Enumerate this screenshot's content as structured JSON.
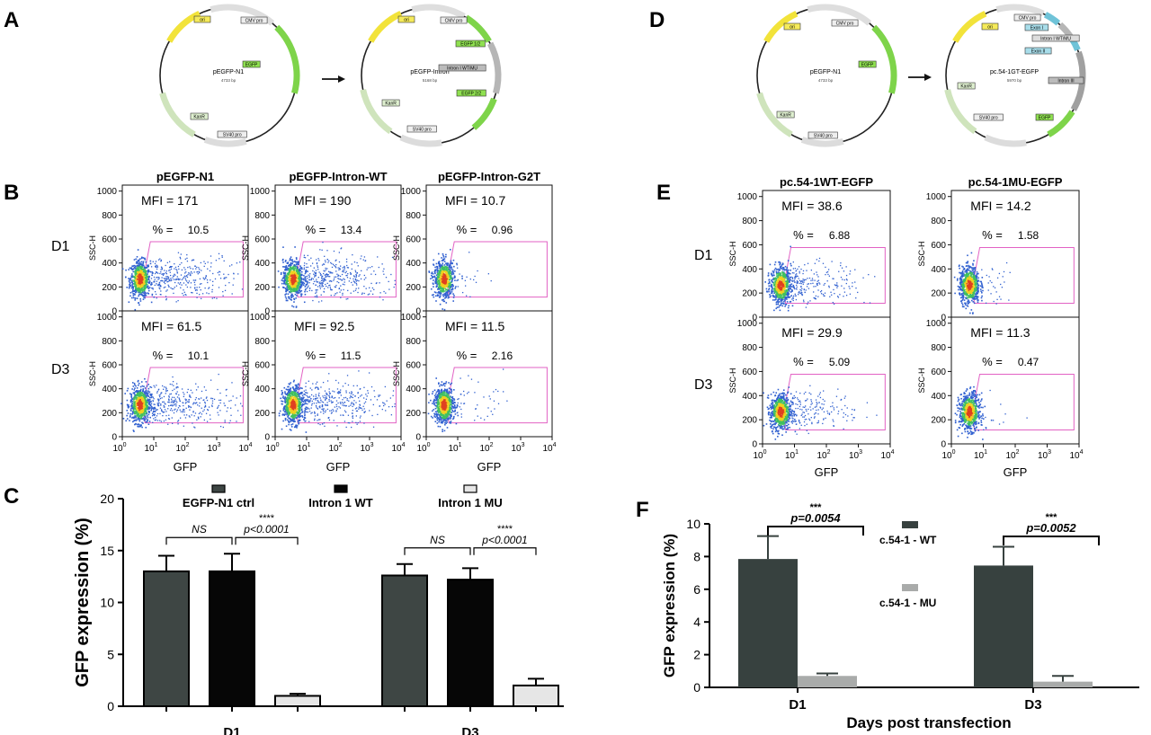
{
  "panels": {
    "A": "A",
    "B": "B",
    "C": "C",
    "D": "D",
    "E": "E",
    "F": "F"
  },
  "panel_a": {
    "left": {
      "name": "pEGFP-N1",
      "size": "4733 bp",
      "features": [
        "ori",
        "CMV pro",
        "EGFP",
        "KanR",
        "SV40 pro"
      ]
    },
    "right": {
      "name": "pEGFP-Intron",
      "size": "5168 bp",
      "features": [
        "ori",
        "CMV pro",
        "EGFP 1/2",
        "Intron I WT/MU",
        "EGFP 2/2",
        "KanR",
        "SV40 pro"
      ]
    }
  },
  "panel_d": {
    "left": {
      "name": "pEGFP-N1",
      "size": "4733 bp",
      "features": [
        "ori",
        "CMV pro",
        "EGFP",
        "KanR",
        "SV40 pro"
      ]
    },
    "right": {
      "name": "pc.54-1GT-EGFP",
      "size": "5970 bp",
      "features": [
        "ori",
        "CMV pro",
        "Exon I",
        "Intron I WT/MU",
        "Exon II",
        "Intron III",
        "KanR",
        "SV40 pro",
        "EGFP"
      ]
    }
  },
  "flow": {
    "ylabel": "SSC-H",
    "xlabel": "GFP",
    "yticks": [
      "0",
      "200",
      "400",
      "600",
      "800",
      "1000"
    ],
    "xticks": [
      {
        "base": "10",
        "exp": "0"
      },
      {
        "base": "10",
        "exp": "1"
      },
      {
        "base": "10",
        "exp": "2"
      },
      {
        "base": "10",
        "exp": "3"
      },
      {
        "base": "10",
        "exp": "4"
      }
    ],
    "day_labels": [
      "D1",
      "D3"
    ],
    "B": {
      "columns": [
        "pEGFP-N1",
        "pEGFP-Intron-WT",
        "pEGFP-Intron-G2T"
      ],
      "mfi": [
        [
          "MFI = 171",
          "MFI = 190",
          "MFI = 10.7"
        ],
        [
          "MFI = 61.5",
          "MFI = 92.5",
          "MFI = 11.5"
        ]
      ],
      "pct": [
        [
          "10.5",
          "13.4",
          "0.96"
        ],
        [
          "10.1",
          "11.5",
          "2.16"
        ]
      ]
    },
    "E": {
      "columns": [
        "pc.54-1WT-EGFP",
        "pc.54-1MU-EGFP"
      ],
      "mfi": [
        [
          "MFI = 38.6",
          "MFI = 14.2"
        ],
        [
          "MFI = 29.9",
          "MFI = 11.3"
        ]
      ],
      "pct": [
        [
          "6.88",
          "1.58"
        ],
        [
          "5.09",
          "0.47"
        ]
      ]
    },
    "pct_symbol": "% ="
  },
  "chart_data": [
    {
      "panel": "C",
      "type": "bar",
      "categories": [
        "D1",
        "D3"
      ],
      "ylabel": "GFP expression (%)",
      "ylim": [
        0,
        20
      ],
      "yticks": [
        0,
        5,
        10,
        15,
        20
      ],
      "series": [
        {
          "name": "EGFP-N1 ctrl",
          "values": [
            13.0,
            12.6
          ],
          "errors": [
            1.5,
            1.1
          ],
          "color": "#3e4644"
        },
        {
          "name": "Intron 1 WT",
          "values": [
            13.0,
            12.2
          ],
          "errors": [
            1.7,
            1.1
          ],
          "color": "#060606"
        },
        {
          "name": "Intron 1 MU",
          "values": [
            1.0,
            2.0
          ],
          "errors": [
            0.2,
            0.65
          ],
          "color": "#e6e6e6"
        }
      ],
      "annotations": [
        {
          "text": "NS",
          "pair": [
            0,
            1
          ]
        },
        {
          "text": "****",
          "sub": "p<0.0001",
          "pair": [
            1,
            2
          ]
        }
      ],
      "legend": "top"
    },
    {
      "panel": "F",
      "type": "bar",
      "categories": [
        "D1",
        "D3"
      ],
      "xlabel": "Days post transfection",
      "ylabel": "GFP expression (%)",
      "ylim": [
        0,
        10
      ],
      "yticks": [
        0,
        2,
        4,
        6,
        8,
        10
      ],
      "series": [
        {
          "name": "c.54-1 - WT",
          "values": [
            7.85,
            7.45
          ],
          "errors": [
            1.4,
            1.15
          ],
          "color": "#37413f"
        },
        {
          "name": "c.54-1 - MU",
          "values": [
            0.7,
            0.35
          ],
          "errors": [
            0.15,
            0.35
          ],
          "color": "#a9abaa"
        }
      ],
      "annotations": [
        {
          "text": "***",
          "sub": "p=0.0054",
          "category": 0
        },
        {
          "text": "***",
          "sub": "p=0.0052",
          "category": 1
        }
      ],
      "legend": "right"
    }
  ],
  "colors": {
    "gate": "#e262c4",
    "axis": "#000000"
  }
}
